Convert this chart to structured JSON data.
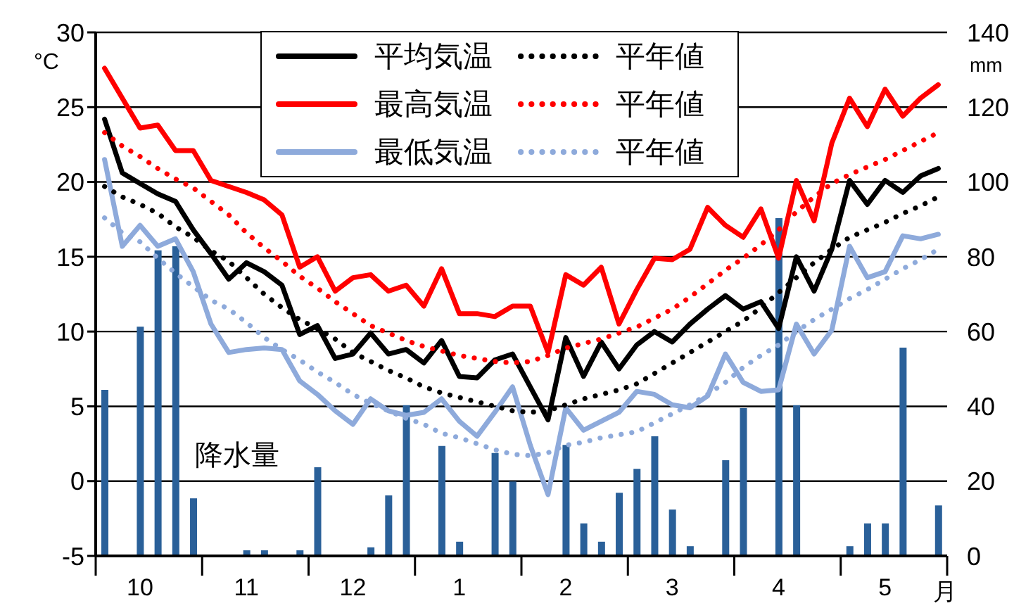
{
  "chart_data": {
    "type": "line",
    "xlabel": "月",
    "ylabel": "°C",
    "y2label": "mm",
    "categories": [
      null,
      null,
      "10",
      null,
      null,
      null,
      null,
      null,
      "11",
      null,
      null,
      null,
      null,
      null,
      "12",
      null,
      null,
      null,
      null,
      null,
      "1",
      null,
      null,
      null,
      null,
      null,
      "2",
      null,
      null,
      null,
      null,
      null,
      "3",
      null,
      null,
      null,
      null,
      null,
      "4",
      null,
      null,
      null,
      null,
      null,
      "5",
      null,
      null,
      null
    ],
    "series": [
      {
        "name": "平均気温",
        "color": "#000000",
        "line_style": "solid",
        "values": [
          24.2,
          20.6,
          19.9,
          19.2,
          18.7,
          16.8,
          15.2,
          13.5,
          14.6,
          14.0,
          13.1,
          9.8,
          10.4,
          8.2,
          8.5,
          9.9,
          8.5,
          8.8,
          7.9,
          9.4,
          7.0,
          6.9,
          8.1,
          8.5,
          6.3,
          4.1,
          9.6,
          7.0,
          9.3,
          7.5,
          9.1,
          10.0,
          9.3,
          10.5,
          11.5,
          12.4,
          11.5,
          12.0,
          10.2,
          15.0,
          12.7,
          15.5,
          20.1,
          18.5,
          20.1,
          19.3,
          20.4,
          20.9
        ]
      },
      {
        "name": "最高気温",
        "color": "#ff0000",
        "line_style": "solid",
        "values": [
          27.6,
          25.6,
          23.6,
          23.8,
          22.1,
          22.1,
          20.1,
          19.7,
          19.3,
          18.8,
          17.8,
          14.3,
          15.0,
          12.7,
          13.6,
          13.8,
          12.7,
          13.1,
          11.7,
          14.2,
          11.2,
          11.2,
          11.0,
          11.7,
          11.7,
          8.6,
          13.8,
          13.1,
          14.3,
          10.5,
          12.8,
          14.9,
          14.8,
          15.5,
          18.3,
          17.1,
          16.3,
          18.2,
          14.9,
          20.1,
          17.4,
          22.6,
          25.6,
          23.7,
          26.2,
          24.4,
          25.6,
          26.5
        ]
      },
      {
        "name": "最低気温",
        "color": "#8eaadb",
        "line_style": "solid",
        "values": [
          21.5,
          15.7,
          17.1,
          15.7,
          16.2,
          14.0,
          10.5,
          8.6,
          8.8,
          8.9,
          8.8,
          6.7,
          5.8,
          4.7,
          3.8,
          5.5,
          4.7,
          4.4,
          4.6,
          5.5,
          4.0,
          3.0,
          4.6,
          6.3,
          2.4,
          -0.9,
          4.9,
          3.4,
          4.0,
          4.6,
          6.0,
          5.8,
          5.1,
          4.9,
          5.7,
          8.5,
          6.6,
          6.0,
          6.1,
          10.5,
          8.5,
          10.1,
          15.7,
          13.6,
          14.0,
          16.4,
          16.2,
          16.5
        ]
      },
      {
        "name": "平年値",
        "color": "#000000",
        "line_style": "dotted",
        "values": [
          19.7,
          19.0,
          18.5,
          17.9,
          17.0,
          16.3,
          15.4,
          14.7,
          13.6,
          12.5,
          11.6,
          10.8,
          10.2,
          9.5,
          8.6,
          8.0,
          7.4,
          6.9,
          6.3,
          5.9,
          5.6,
          5.3,
          5.0,
          4.7,
          4.6,
          4.7,
          5.1,
          5.5,
          5.8,
          6.1,
          6.5,
          7.2,
          7.9,
          8.6,
          9.3,
          10.0,
          10.7,
          11.6,
          12.6,
          13.6,
          14.6,
          15.5,
          16.3,
          16.8,
          17.3,
          17.9,
          18.4,
          19.0
        ]
      },
      {
        "name": "平年値",
        "color": "#ff0000",
        "line_style": "dotted",
        "values": [
          23.3,
          22.4,
          21.7,
          20.9,
          20.2,
          19.6,
          18.7,
          17.8,
          16.6,
          15.6,
          14.7,
          13.7,
          12.9,
          12.0,
          11.2,
          10.4,
          9.9,
          9.4,
          9.0,
          8.7,
          8.4,
          8.2,
          8.0,
          7.9,
          8.0,
          8.4,
          8.9,
          9.2,
          9.5,
          9.9,
          10.3,
          10.9,
          11.5,
          12.3,
          13.2,
          14.1,
          14.9,
          15.8,
          16.8,
          18.0,
          19.0,
          19.9,
          20.5,
          21.0,
          21.5,
          22.1,
          22.7,
          23.3
        ]
      },
      {
        "name": "平年値",
        "color": "#8eaadb",
        "line_style": "dotted",
        "values": [
          17.6,
          16.6,
          16.0,
          14.9,
          13.9,
          13.0,
          12.1,
          11.5,
          10.6,
          9.6,
          8.8,
          8.1,
          7.3,
          6.6,
          5.8,
          5.2,
          4.7,
          4.2,
          3.8,
          3.2,
          2.9,
          2.5,
          2.1,
          1.8,
          1.7,
          1.9,
          2.4,
          2.6,
          2.9,
          3.1,
          3.3,
          3.9,
          4.5,
          5.1,
          5.8,
          6.6,
          7.6,
          8.4,
          9.1,
          10.0,
          10.8,
          11.5,
          12.2,
          12.8,
          13.5,
          14.2,
          14.8,
          15.5
        ]
      },
      {
        "name": "降水量",
        "type": "bar",
        "axis": "y2",
        "color": "#2a6099",
        "values": [
          44.4,
          0,
          61.3,
          81.7,
          82.8,
          15.4,
          0,
          0,
          1.5,
          1.5,
          0,
          1.5,
          23.7,
          0,
          0,
          2.3,
          16.2,
          40.3,
          0,
          29.4,
          3.8,
          0,
          27.5,
          19.9,
          0,
          0,
          29.7,
          8.7,
          3.8,
          16.9,
          23.3,
          32.0,
          12.4,
          2.6,
          0,
          25.6,
          39.5,
          0,
          90.3,
          40.3,
          0,
          0,
          2.6,
          8.7,
          8.7,
          55.7,
          0,
          13.5
        ]
      }
    ],
    "ylim": [
      -5,
      30
    ],
    "yticks": [
      -5,
      0,
      5,
      10,
      15,
      20,
      25,
      30
    ],
    "y2lim": [
      0,
      140
    ],
    "y2ticks": [
      0,
      20,
      40,
      60,
      80,
      100,
      120,
      140
    ],
    "grid": "y",
    "legend": "top",
    "marker": "none"
  }
}
